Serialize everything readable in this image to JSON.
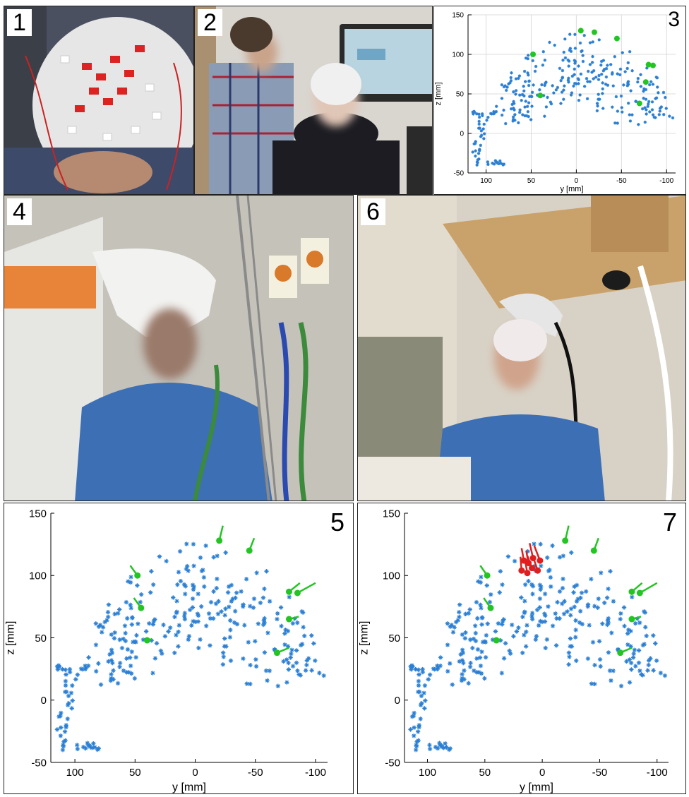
{
  "panels": {
    "p1": {
      "label": "1"
    },
    "p2": {
      "label": "2"
    },
    "p3": {
      "label": "3"
    },
    "p4": {
      "label": "4"
    },
    "p5": {
      "label": "5"
    },
    "p6": {
      "label": "6"
    },
    "p7": {
      "label": "7"
    }
  },
  "colors": {
    "electrode": "#2a7fd4",
    "fiducial": "#22c522",
    "selected": "#e01e1e"
  },
  "chart_data": [
    {
      "id": "plot3",
      "type": "scatter",
      "xlabel": "y [mm]",
      "ylabel": "z [mm]",
      "xlim": [
        120,
        -110
      ],
      "ylim": [
        -50,
        150
      ],
      "xticks": [
        100,
        50,
        0,
        -50,
        -100
      ],
      "yticks": [
        150,
        100,
        50,
        0,
        -50
      ],
      "xtick_labels": [
        "100",
        "50",
        "0",
        "-50",
        "-100"
      ],
      "ytick_labels": [
        "150",
        "100",
        "50",
        "0",
        "-50"
      ],
      "green_points": [
        [
          48,
          100
        ],
        [
          40,
          48
        ],
        [
          -5,
          130
        ],
        [
          -20,
          128
        ],
        [
          -45,
          120
        ],
        [
          -80,
          87
        ],
        [
          -85,
          86
        ],
        [
          -77,
          65
        ],
        [
          -70,
          38
        ]
      ]
    },
    {
      "id": "plot5",
      "type": "scatter",
      "xlabel": "y [mm]",
      "ylabel": "z [mm]",
      "xlim": [
        120,
        -110
      ],
      "ylim": [
        -50,
        150
      ],
      "xticks": [
        100,
        50,
        0,
        -50,
        -100
      ],
      "yticks": [
        150,
        100,
        50,
        0,
        -50
      ],
      "xtick_labels": [
        "100",
        "50",
        "0",
        "-50",
        "-100"
      ],
      "ytick_labels": [
        "150",
        "100",
        "50",
        "0",
        "-50"
      ],
      "green_points": [
        [
          48,
          100
        ],
        [
          45,
          74
        ],
        [
          40,
          48
        ],
        [
          -20,
          128
        ],
        [
          -45,
          120
        ],
        [
          -78,
          87
        ],
        [
          -85,
          86
        ],
        [
          -78,
          65
        ],
        [
          -68,
          38
        ]
      ],
      "green_vectors": [
        [
          6,
          8
        ],
        [
          6,
          8
        ],
        [
          -4,
          1
        ],
        [
          -3,
          12
        ],
        [
          -4,
          10
        ],
        [
          -9,
          7
        ],
        [
          -15,
          8
        ],
        [
          -8,
          2
        ],
        [
          -10,
          4
        ]
      ]
    },
    {
      "id": "plot7",
      "type": "scatter",
      "xlabel": "y [mm]",
      "ylabel": "z [mm]",
      "xlim": [
        120,
        -110
      ],
      "ylim": [
        -50,
        150
      ],
      "xticks": [
        100,
        50,
        0,
        -50,
        -100
      ],
      "yticks": [
        150,
        100,
        50,
        0,
        -50
      ],
      "xtick_labels": [
        "100",
        "50",
        "0",
        "-50",
        "-100"
      ],
      "ytick_labels": [
        "150",
        "100",
        "50",
        "0",
        "-50"
      ],
      "green_points": [
        [
          48,
          100
        ],
        [
          45,
          74
        ],
        [
          40,
          48
        ],
        [
          -20,
          128
        ],
        [
          -45,
          120
        ],
        [
          -78,
          87
        ],
        [
          -85,
          86
        ],
        [
          -78,
          65
        ],
        [
          -68,
          38
        ]
      ],
      "green_vectors": [
        [
          6,
          8
        ],
        [
          6,
          8
        ],
        [
          -4,
          1
        ],
        [
          -3,
          12
        ],
        [
          -4,
          10
        ],
        [
          -9,
          7
        ],
        [
          -15,
          8
        ],
        [
          -8,
          2
        ],
        [
          -10,
          4
        ]
      ],
      "red_points": [
        [
          2,
          112
        ],
        [
          8,
          114
        ],
        [
          12,
          110
        ],
        [
          16,
          112
        ],
        [
          4,
          104
        ],
        [
          9,
          106
        ],
        [
          13,
          102
        ],
        [
          18,
          104
        ]
      ],
      "red_vectors": [
        [
          5,
          12
        ],
        [
          3,
          12
        ],
        [
          2,
          10
        ],
        [
          2,
          10
        ],
        [
          4,
          11
        ],
        [
          4,
          10
        ],
        [
          2,
          10
        ],
        [
          1,
          11
        ]
      ]
    }
  ]
}
